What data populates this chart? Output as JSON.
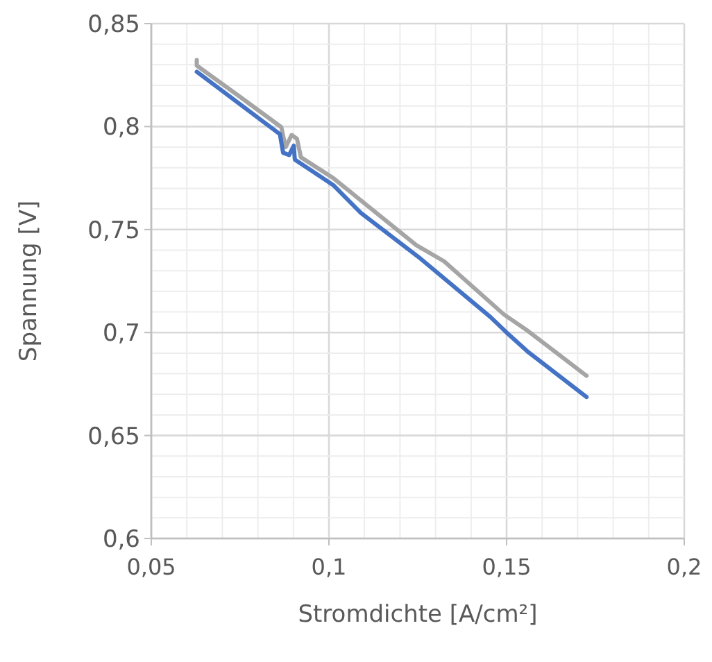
{
  "chart_data": {
    "type": "line",
    "xlabel": "Stromdichte [A/cm²]",
    "ylabel": "Spannung [V]",
    "xlim": [
      0.05,
      0.2
    ],
    "ylim": [
      0.6,
      0.85
    ],
    "xticks": [
      {
        "value": 0.05,
        "label": "0,05"
      },
      {
        "value": 0.06,
        "label": null
      },
      {
        "value": 0.07,
        "label": null
      },
      {
        "value": 0.08,
        "label": null
      },
      {
        "value": 0.09,
        "label": null
      },
      {
        "value": 0.1,
        "label": "0,1"
      },
      {
        "value": 0.11,
        "label": null
      },
      {
        "value": 0.12,
        "label": null
      },
      {
        "value": 0.13,
        "label": null
      },
      {
        "value": 0.14,
        "label": null
      },
      {
        "value": 0.15,
        "label": "0,15"
      },
      {
        "value": 0.16,
        "label": null
      },
      {
        "value": 0.17,
        "label": null
      },
      {
        "value": 0.18,
        "label": null
      },
      {
        "value": 0.19,
        "label": null
      },
      {
        "value": 0.2,
        "label": "0,2"
      }
    ],
    "yticks": [
      {
        "value": 0.6,
        "label": "0,6"
      },
      {
        "value": 0.61,
        "label": null
      },
      {
        "value": 0.62,
        "label": null
      },
      {
        "value": 0.63,
        "label": null
      },
      {
        "value": 0.64,
        "label": null
      },
      {
        "value": 0.65,
        "label": "0,65"
      },
      {
        "value": 0.66,
        "label": null
      },
      {
        "value": 0.67,
        "label": null
      },
      {
        "value": 0.68,
        "label": null
      },
      {
        "value": 0.69,
        "label": null
      },
      {
        "value": 0.7,
        "label": "0,7"
      },
      {
        "value": 0.71,
        "label": null
      },
      {
        "value": 0.72,
        "label": null
      },
      {
        "value": 0.73,
        "label": null
      },
      {
        "value": 0.74,
        "label": null
      },
      {
        "value": 0.75,
        "label": "0,75"
      },
      {
        "value": 0.76,
        "label": null
      },
      {
        "value": 0.77,
        "label": null
      },
      {
        "value": 0.78,
        "label": null
      },
      {
        "value": 0.79,
        "label": null
      },
      {
        "value": 0.8,
        "label": "0,8"
      },
      {
        "value": 0.81,
        "label": null
      },
      {
        "value": 0.82,
        "label": null
      },
      {
        "value": 0.83,
        "label": null
      },
      {
        "value": 0.84,
        "label": null
      },
      {
        "value": 0.85,
        "label": "0,85"
      }
    ],
    "grid": true,
    "marker": "none",
    "line_style": "solid",
    "series": [
      {
        "color": "#a5a5a5",
        "x": [
          0.0628,
          0.0628,
          0.0751,
          0.0866,
          0.0878,
          0.0895,
          0.091,
          0.0921,
          0.1012,
          0.1246,
          0.1324,
          0.1493,
          0.1559,
          0.1725
        ],
        "values": [
          0.8323,
          0.8296,
          0.8143,
          0.7997,
          0.79,
          0.7959,
          0.7941,
          0.7851,
          0.775,
          0.7424,
          0.7346,
          0.7087,
          0.7009,
          0.679
        ]
      },
      {
        "color": "#4472c4",
        "x": [
          0.0628,
          0.0862,
          0.0871,
          0.0888,
          0.0901,
          0.0904,
          0.1012,
          0.109,
          0.1259,
          0.1454,
          0.15,
          0.1559,
          0.1725
        ],
        "values": [
          0.8266,
          0.7963,
          0.7873,
          0.7862,
          0.7907,
          0.784,
          0.7716,
          0.7581,
          0.7357,
          0.7076,
          0.7,
          0.6908,
          0.6687
        ]
      }
    ]
  }
}
